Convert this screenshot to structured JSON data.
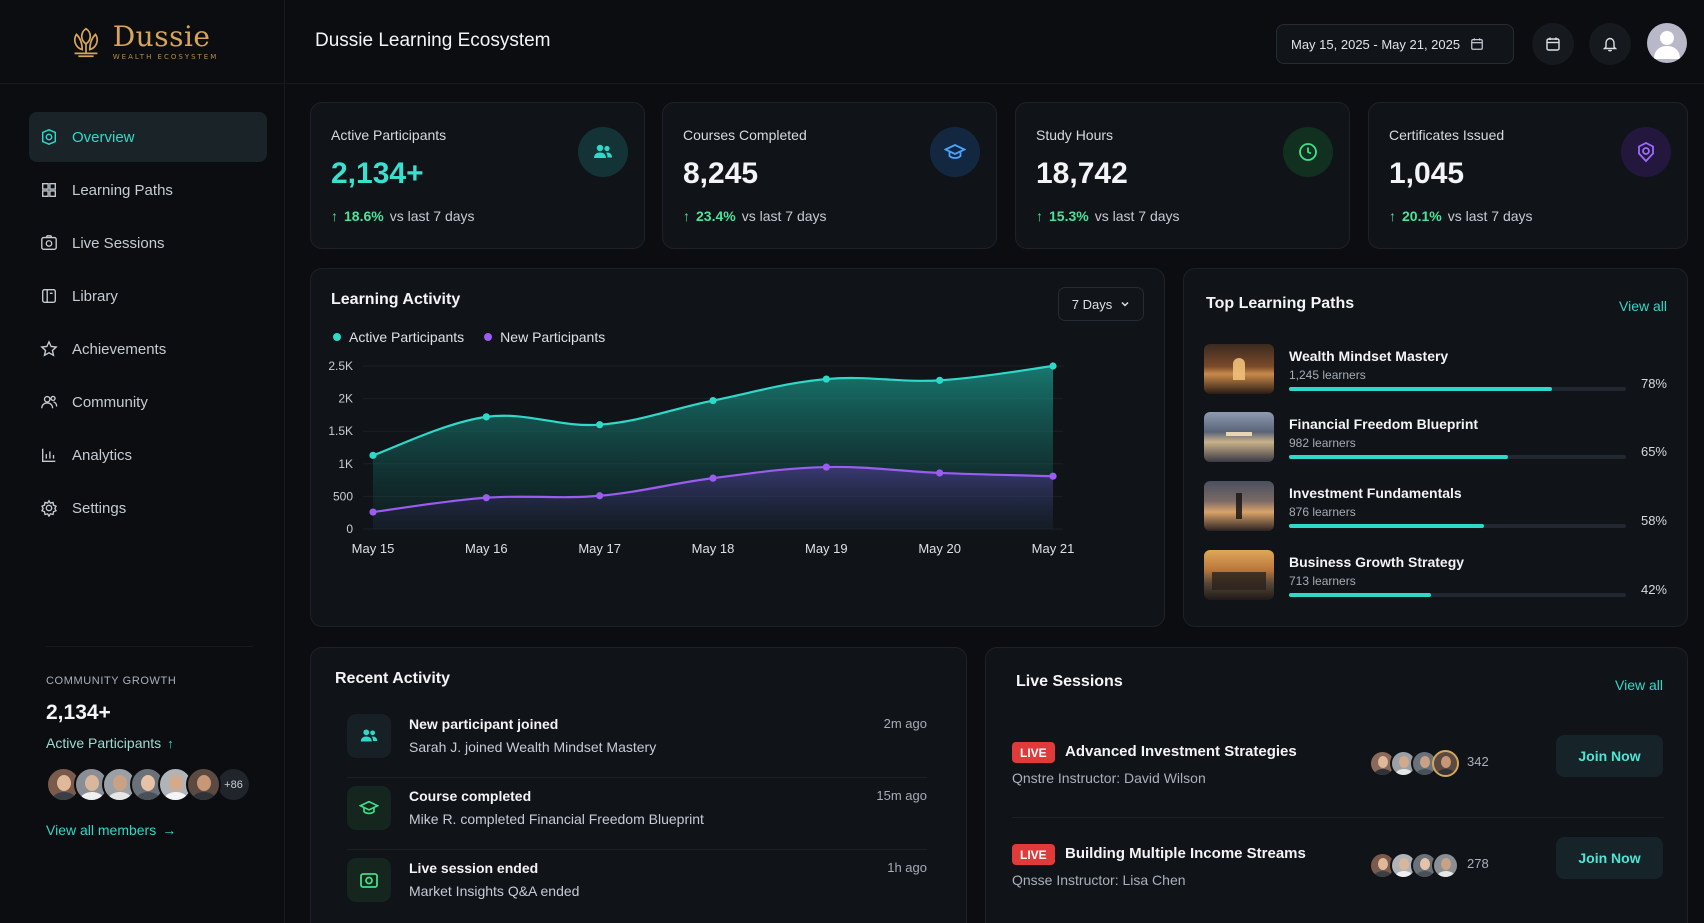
{
  "brand": {
    "name": "Dussie",
    "subtitle": "WEALTH ECOSYSTEM"
  },
  "header": {
    "title": "Dussie Learning Ecosystem",
    "date_range": "May 15, 2025 - May 21, 2025"
  },
  "sidebar": {
    "items": [
      {
        "label": "Overview",
        "icon": "overview-icon",
        "active": true
      },
      {
        "label": "Learning Paths",
        "icon": "learning-paths-icon"
      },
      {
        "label": "Live Sessions",
        "icon": "live-sessions-icon"
      },
      {
        "label": "Library",
        "icon": "library-icon"
      },
      {
        "label": "Achievements",
        "icon": "achievements-icon"
      },
      {
        "label": "Community",
        "icon": "community-icon"
      },
      {
        "label": "Analytics",
        "icon": "analytics-icon"
      },
      {
        "label": "Settings",
        "icon": "settings-icon"
      }
    ],
    "growth": {
      "label": "COMMUNITY GROWTH",
      "value": "2,134+",
      "sub": "Active Participants",
      "more": "+86",
      "view_all": "View all members"
    }
  },
  "stats": [
    {
      "label": "Active Participants",
      "value": "2,134+",
      "delta": "18.6%",
      "delta_text": "vs last 7 days",
      "icon": "users-icon",
      "color": "#2fd9c9"
    },
    {
      "label": "Courses Completed",
      "value": "8,245",
      "delta": "23.4%",
      "delta_text": "vs last 7 days",
      "icon": "graduation-cap-icon",
      "color": "#4aa3ff"
    },
    {
      "label": "Study Hours",
      "value": "18,742",
      "delta": "15.3%",
      "delta_text": "vs last 7 days",
      "icon": "clock-icon",
      "color": "#3ee08a"
    },
    {
      "label": "Certificates Issued",
      "value": "1,045",
      "delta": "20.1%",
      "delta_text": "vs last 7 days",
      "icon": "certificate-icon",
      "color": "#9c6bff"
    }
  ],
  "activity": {
    "title": "Learning Activity",
    "range": "7 Days"
  },
  "chart_data": {
    "type": "area",
    "categories": [
      "May 15",
      "May 16",
      "May 17",
      "May 18",
      "May 19",
      "May 20",
      "May 21"
    ],
    "y_ticks": [
      "0",
      "500",
      "1K",
      "1.5K",
      "2K",
      "2.5K"
    ],
    "ylim": [
      0,
      2500
    ],
    "grid": true,
    "legend": "top-left",
    "series": [
      {
        "name": "Active Participants",
        "color": "#2fd9c9",
        "values": [
          1130,
          1720,
          1600,
          1970,
          2300,
          2280,
          2500
        ]
      },
      {
        "name": "New Participants",
        "color": "#9b5cf0",
        "values": [
          260,
          480,
          510,
          780,
          950,
          860,
          810
        ]
      }
    ]
  },
  "top_paths": {
    "title": "Top Learning Paths",
    "view_all": "View all",
    "items": [
      {
        "name": "Wealth Mindset Mastery",
        "learners": "1,245 learners",
        "pct": "78%",
        "progress": 0.78
      },
      {
        "name": "Financial Freedom Blueprint",
        "learners": "982 learners",
        "pct": "65%",
        "progress": 0.65
      },
      {
        "name": "Investment Fundamentals",
        "learners": "876 learners",
        "pct": "58%",
        "progress": 0.58
      },
      {
        "name": "Business Growth Strategy",
        "learners": "713 learners",
        "pct": "42%",
        "progress": 0.42
      }
    ]
  },
  "recent": {
    "title": "Recent Activity",
    "items": [
      {
        "title": "New participant joined",
        "desc": "Sarah J. joined Wealth Mindset Mastery",
        "time": "2m ago",
        "icon": "users-icon"
      },
      {
        "title": "Course completed",
        "desc": "Mike R. completed Financial Freedom Blueprint",
        "time": "15m ago",
        "icon": "graduation-cap-icon"
      },
      {
        "title": "Live session ended",
        "desc": "Market Insights Q&A ended",
        "time": "1h ago",
        "icon": "live-session-icon"
      }
    ]
  },
  "live": {
    "title": "Live Sessions",
    "view_all": "View all",
    "items": [
      {
        "badge": "LIVE",
        "title": "Advanced Investment Strategies",
        "sub": "Qnstre  Instructor: David Wilson",
        "count": "342",
        "join": "Join Now"
      },
      {
        "badge": "LIVE",
        "title": "Building Multiple Income Streams",
        "sub": "Qnsse  Instructor: Lisa Chen",
        "count": "278",
        "join": "Join Now"
      }
    ]
  }
}
